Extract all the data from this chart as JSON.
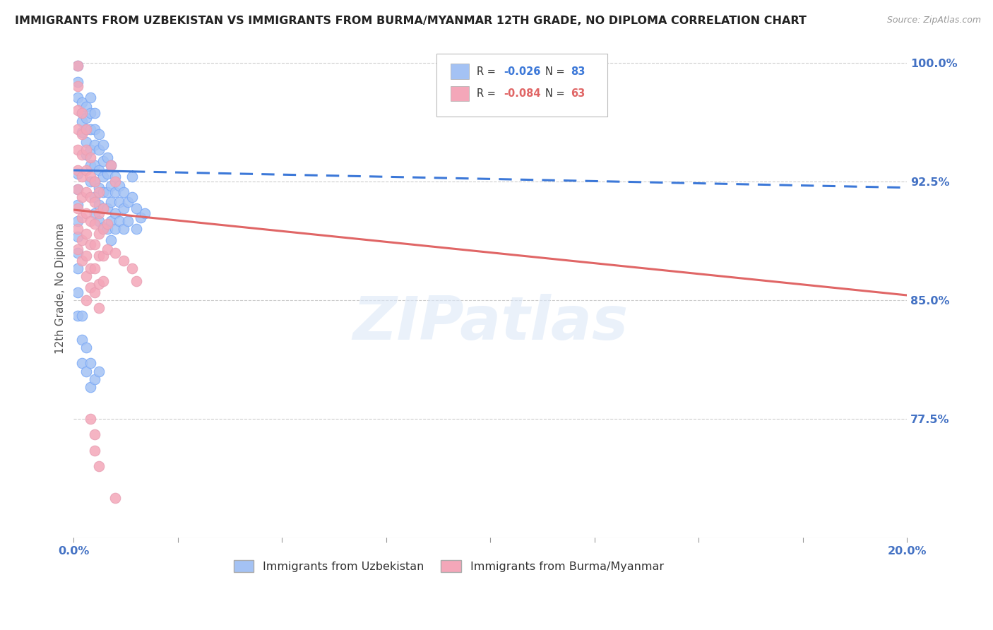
{
  "title": "IMMIGRANTS FROM UZBEKISTAN VS IMMIGRANTS FROM BURMA/MYANMAR 12TH GRADE, NO DIPLOMA CORRELATION CHART",
  "source": "Source: ZipAtlas.com",
  "ylabel": "12th Grade, No Diploma",
  "ytick_labels": [
    "100.0%",
    "92.5%",
    "85.0%",
    "77.5%"
  ],
  "ytick_values": [
    1.0,
    0.925,
    0.85,
    0.775
  ],
  "legend_R_blue": "-0.026",
  "legend_N_blue": "83",
  "legend_R_pink": "-0.084",
  "legend_N_pink": "63",
  "blue_color": "#a4c2f4",
  "pink_color": "#f4a7b9",
  "trend_blue_color": "#3c78d8",
  "trend_pink_color": "#e06666",
  "watermark": "ZIPatlas",
  "blue_scatter": [
    [
      0.001,
      0.998
    ],
    [
      0.001,
      0.988
    ],
    [
      0.001,
      0.978
    ],
    [
      0.002,
      0.975
    ],
    [
      0.002,
      0.968
    ],
    [
      0.002,
      0.963
    ],
    [
      0.002,
      0.956
    ],
    [
      0.003,
      0.972
    ],
    [
      0.003,
      0.965
    ],
    [
      0.003,
      0.958
    ],
    [
      0.003,
      0.95
    ],
    [
      0.003,
      0.942
    ],
    [
      0.004,
      0.978
    ],
    [
      0.004,
      0.968
    ],
    [
      0.004,
      0.958
    ],
    [
      0.004,
      0.945
    ],
    [
      0.004,
      0.935
    ],
    [
      0.004,
      0.925
    ],
    [
      0.005,
      0.968
    ],
    [
      0.005,
      0.958
    ],
    [
      0.005,
      0.948
    ],
    [
      0.005,
      0.935
    ],
    [
      0.005,
      0.925
    ],
    [
      0.005,
      0.915
    ],
    [
      0.005,
      0.905
    ],
    [
      0.006,
      0.955
    ],
    [
      0.006,
      0.945
    ],
    [
      0.006,
      0.932
    ],
    [
      0.006,
      0.921
    ],
    [
      0.006,
      0.91
    ],
    [
      0.006,
      0.9
    ],
    [
      0.007,
      0.948
    ],
    [
      0.007,
      0.938
    ],
    [
      0.007,
      0.928
    ],
    [
      0.007,
      0.918
    ],
    [
      0.007,
      0.908
    ],
    [
      0.007,
      0.896
    ],
    [
      0.008,
      0.94
    ],
    [
      0.008,
      0.93
    ],
    [
      0.008,
      0.918
    ],
    [
      0.008,
      0.908
    ],
    [
      0.008,
      0.895
    ],
    [
      0.009,
      0.935
    ],
    [
      0.009,
      0.922
    ],
    [
      0.009,
      0.912
    ],
    [
      0.009,
      0.9
    ],
    [
      0.009,
      0.888
    ],
    [
      0.01,
      0.928
    ],
    [
      0.01,
      0.918
    ],
    [
      0.01,
      0.905
    ],
    [
      0.01,
      0.895
    ],
    [
      0.011,
      0.922
    ],
    [
      0.011,
      0.912
    ],
    [
      0.011,
      0.9
    ],
    [
      0.012,
      0.918
    ],
    [
      0.012,
      0.908
    ],
    [
      0.012,
      0.895
    ],
    [
      0.013,
      0.912
    ],
    [
      0.013,
      0.9
    ],
    [
      0.014,
      0.928
    ],
    [
      0.014,
      0.915
    ],
    [
      0.015,
      0.908
    ],
    [
      0.015,
      0.895
    ],
    [
      0.016,
      0.902
    ],
    [
      0.017,
      0.905
    ],
    [
      0.001,
      0.93
    ],
    [
      0.001,
      0.92
    ],
    [
      0.001,
      0.91
    ],
    [
      0.001,
      0.9
    ],
    [
      0.001,
      0.89
    ],
    [
      0.001,
      0.88
    ],
    [
      0.001,
      0.87
    ],
    [
      0.001,
      0.855
    ],
    [
      0.001,
      0.84
    ],
    [
      0.002,
      0.84
    ],
    [
      0.002,
      0.825
    ],
    [
      0.002,
      0.81
    ],
    [
      0.003,
      0.82
    ],
    [
      0.003,
      0.805
    ],
    [
      0.004,
      0.81
    ],
    [
      0.004,
      0.795
    ],
    [
      0.005,
      0.8
    ],
    [
      0.006,
      0.805
    ]
  ],
  "pink_scatter": [
    [
      0.001,
      0.998
    ],
    [
      0.001,
      0.985
    ],
    [
      0.001,
      0.97
    ],
    [
      0.001,
      0.958
    ],
    [
      0.001,
      0.945
    ],
    [
      0.001,
      0.932
    ],
    [
      0.001,
      0.92
    ],
    [
      0.001,
      0.908
    ],
    [
      0.001,
      0.895
    ],
    [
      0.001,
      0.882
    ],
    [
      0.002,
      0.968
    ],
    [
      0.002,
      0.955
    ],
    [
      0.002,
      0.942
    ],
    [
      0.002,
      0.928
    ],
    [
      0.002,
      0.915
    ],
    [
      0.002,
      0.902
    ],
    [
      0.002,
      0.888
    ],
    [
      0.002,
      0.875
    ],
    [
      0.003,
      0.958
    ],
    [
      0.003,
      0.945
    ],
    [
      0.003,
      0.932
    ],
    [
      0.003,
      0.918
    ],
    [
      0.003,
      0.905
    ],
    [
      0.003,
      0.892
    ],
    [
      0.003,
      0.878
    ],
    [
      0.003,
      0.865
    ],
    [
      0.003,
      0.85
    ],
    [
      0.004,
      0.94
    ],
    [
      0.004,
      0.928
    ],
    [
      0.004,
      0.915
    ],
    [
      0.004,
      0.9
    ],
    [
      0.004,
      0.885
    ],
    [
      0.004,
      0.87
    ],
    [
      0.004,
      0.858
    ],
    [
      0.005,
      0.925
    ],
    [
      0.005,
      0.912
    ],
    [
      0.005,
      0.898
    ],
    [
      0.005,
      0.885
    ],
    [
      0.005,
      0.87
    ],
    [
      0.005,
      0.855
    ],
    [
      0.006,
      0.918
    ],
    [
      0.006,
      0.905
    ],
    [
      0.006,
      0.892
    ],
    [
      0.006,
      0.878
    ],
    [
      0.006,
      0.86
    ],
    [
      0.006,
      0.845
    ],
    [
      0.007,
      0.908
    ],
    [
      0.007,
      0.895
    ],
    [
      0.007,
      0.878
    ],
    [
      0.007,
      0.862
    ],
    [
      0.008,
      0.898
    ],
    [
      0.008,
      0.882
    ],
    [
      0.009,
      0.935
    ],
    [
      0.01,
      0.925
    ],
    [
      0.01,
      0.88
    ],
    [
      0.012,
      0.875
    ],
    [
      0.014,
      0.87
    ],
    [
      0.015,
      0.862
    ],
    [
      0.004,
      0.775
    ],
    [
      0.005,
      0.765
    ],
    [
      0.005,
      0.755
    ],
    [
      0.006,
      0.745
    ],
    [
      0.01,
      0.725
    ]
  ],
  "blue_trend_y0": 0.932,
  "blue_trend_y1": 0.921,
  "pink_trend_y0": 0.907,
  "pink_trend_y1": 0.853,
  "blue_solid_xend": 0.014,
  "xlim": [
    0.0,
    0.2
  ],
  "ylim": [
    0.7,
    1.015
  ],
  "xtick_positions": [
    0.0,
    0.025,
    0.05,
    0.075,
    0.1,
    0.125,
    0.15,
    0.175,
    0.2
  ],
  "grid_color": "#cccccc",
  "background_color": "#ffffff",
  "axis_color": "#4472c4",
  "title_fontsize": 11.5,
  "source_fontsize": 9,
  "tick_fontsize": 11.5,
  "ylabel_fontsize": 11
}
